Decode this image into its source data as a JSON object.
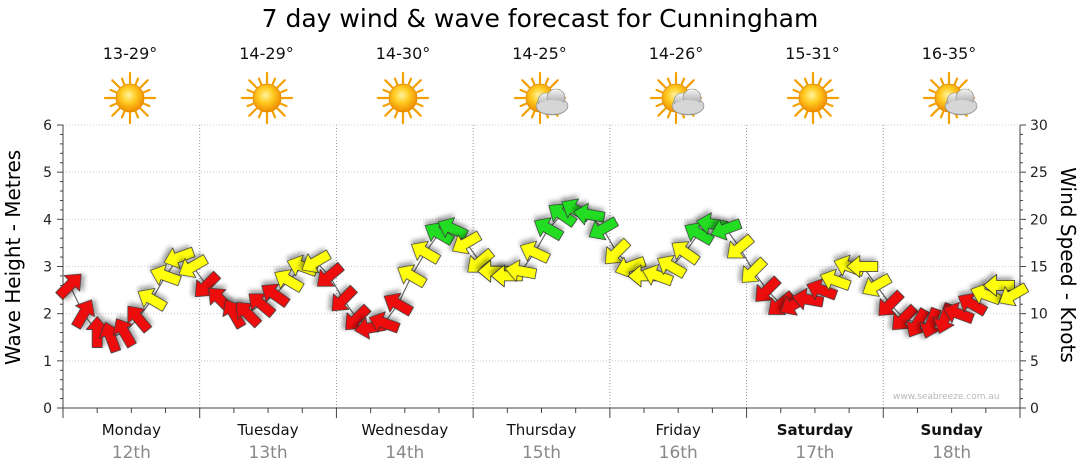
{
  "title": "7 day wind & wave forecast for Cunningham",
  "days": [
    {
      "name": "Monday",
      "date": "12th",
      "temp": "13-29°",
      "weather": "sunny",
      "bold": false
    },
    {
      "name": "Tuesday",
      "date": "13th",
      "temp": "14-29°",
      "weather": "sunny",
      "bold": false
    },
    {
      "name": "Wednesday",
      "date": "14th",
      "temp": "14-30°",
      "weather": "sunny",
      "bold": false
    },
    {
      "name": "Thursday",
      "date": "15th",
      "temp": "14-25°",
      "weather": "partly-cloudy",
      "bold": false
    },
    {
      "name": "Friday",
      "date": "16th",
      "temp": "14-26°",
      "weather": "partly-cloudy",
      "bold": false
    },
    {
      "name": "Saturday",
      "date": "17th",
      "temp": "15-31°",
      "weather": "sunny",
      "bold": true
    },
    {
      "name": "Sunday",
      "date": "18th",
      "temp": "16-35°",
      "weather": "partly-cloudy",
      "bold": true
    }
  ],
  "watermark": "www.seabreeze.com.au",
  "colors": {
    "red": "#ee1111",
    "yellow": "#ffff11",
    "green": "#22dd22",
    "grid": "#999999"
  },
  "chart_data": {
    "type": "line",
    "title": "7 day wind & wave forecast for Cunningham",
    "ylabel_left": "Wave Height - Metres",
    "ylabel_right": "Wind Speed - Knots",
    "ylim_left": [
      0,
      6
    ],
    "ylim_right": [
      0,
      30
    ],
    "yticks_left": [
      "0",
      "1",
      "2",
      "3",
      "4",
      "5",
      "6"
    ],
    "yticks_right": [
      "0",
      "5",
      "10",
      "15",
      "20",
      "25",
      "30"
    ],
    "x_unit": "days from Monday 00:00",
    "series": [
      {
        "name": "Wind (knots, arrows)",
        "x": [
          0.05,
          0.15,
          0.25,
          0.35,
          0.45,
          0.55,
          0.65,
          0.75,
          0.85,
          0.95,
          1.05,
          1.15,
          1.25,
          1.35,
          1.45,
          1.55,
          1.65,
          1.75,
          1.85,
          1.95,
          2.05,
          2.15,
          2.25,
          2.35,
          2.45,
          2.55,
          2.65,
          2.75,
          2.85,
          2.95,
          3.05,
          3.15,
          3.25,
          3.35,
          3.45,
          3.55,
          3.65,
          3.75,
          3.85,
          3.95,
          4.05,
          4.15,
          4.25,
          4.35,
          4.45,
          4.55,
          4.65,
          4.75,
          4.85,
          4.95,
          5.05,
          5.15,
          5.25,
          5.35,
          5.45,
          5.55,
          5.65,
          5.75,
          5.85,
          5.95,
          6.05,
          6.15,
          6.25,
          6.35,
          6.45,
          6.55,
          6.65,
          6.75,
          6.85,
          6.95
        ],
        "values": [
          11.5,
          9,
          8,
          7.5,
          8.5,
          11,
          14,
          16,
          15,
          13,
          11,
          10,
          9.5,
          10,
          11,
          12,
          14,
          16,
          15,
          12,
          11,
          9,
          8,
          9,
          11,
          14,
          16,
          18,
          19,
          17,
          15,
          14,
          13,
          14,
          16,
          19,
          21,
          22,
          21,
          19,
          17,
          15,
          14,
          14,
          16,
          17,
          19,
          20,
          19,
          17,
          14,
          12,
          11,
          10,
          11,
          12,
          13,
          14,
          15,
          13,
          11,
          10,
          9,
          9,
          10,
          11,
          12,
          13,
          14,
          13
        ],
        "direction_deg": [
          315,
          300,
          270,
          250,
          240,
          230,
          210,
          200,
          160,
          150,
          135,
          225,
          240,
          225,
          220,
          215,
          210,
          200,
          150,
          140,
          135,
          135,
          170,
          200,
          210,
          210,
          210,
          210,
          205,
          150,
          140,
          180,
          180,
          190,
          205,
          210,
          215,
          210,
          190,
          150,
          135,
          160,
          180,
          200,
          210,
          215,
          210,
          190,
          160,
          140,
          135,
          135,
          140,
          150,
          190,
          200,
          200,
          200,
          180,
          150,
          135,
          135,
          120,
          110,
          110,
          200,
          210,
          200,
          180,
          150
        ]
      },
      {
        "name": "Wave Height (metres)",
        "x": [
          0.05,
          0.15,
          0.25,
          0.35,
          0.45,
          0.55,
          0.65,
          0.75,
          0.85,
          0.95,
          1.05,
          1.15,
          1.25,
          1.35,
          1.45,
          1.55,
          1.65,
          1.75,
          1.85,
          1.95,
          2.05,
          2.15,
          2.25,
          2.35,
          2.45,
          2.55,
          2.65,
          2.75,
          2.85,
          2.95,
          3.05,
          3.15,
          3.25,
          3.35,
          3.45,
          3.55,
          3.65,
          3.75,
          3.85,
          3.95,
          4.05,
          4.15,
          4.25,
          4.35,
          4.45,
          4.55,
          4.65,
          4.75,
          4.85,
          4.95,
          5.05,
          5.15,
          5.25,
          5.35,
          5.45,
          5.55,
          5.65,
          5.75,
          5.85,
          5.95,
          6.05,
          6.15,
          6.25,
          6.35,
          6.45,
          6.55,
          6.65,
          6.75,
          6.85,
          6.95
        ],
        "values": [
          2.6,
          2.0,
          1.6,
          1.5,
          1.6,
          1.9,
          2.3,
          2.8,
          3.2,
          3.0,
          2.6,
          2.3,
          2.0,
          2.0,
          2.2,
          2.4,
          2.7,
          3.0,
          3.1,
          2.8,
          2.3,
          1.9,
          1.7,
          1.8,
          2.2,
          2.8,
          3.3,
          3.7,
          3.8,
          3.5,
          3.1,
          2.9,
          2.8,
          2.9,
          3.3,
          3.8,
          4.1,
          4.2,
          4.1,
          3.8,
          3.3,
          3.0,
          2.8,
          2.8,
          3.0,
          3.3,
          3.7,
          3.9,
          3.8,
          3.4,
          2.9,
          2.5,
          2.2,
          2.2,
          2.3,
          2.5,
          2.7,
          3.0,
          3.0,
          2.6,
          2.2,
          1.9,
          1.8,
          1.8,
          1.9,
          2.0,
          2.2,
          2.4,
          2.6,
          2.4
        ]
      }
    ]
  }
}
